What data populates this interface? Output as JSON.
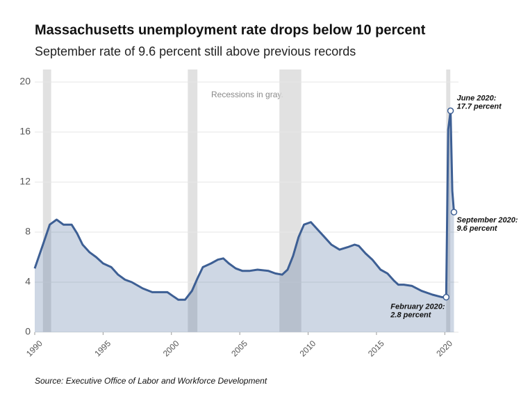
{
  "chart_data": {
    "type": "area",
    "title": "Massachusetts unemployment rate drops below 10 percent",
    "subtitle": "September rate of 9.6 percent still above previous records",
    "source": "Source: Executive Office of Labor and Workforce Development",
    "recession_note": "Recessions in gray.",
    "recessions": [
      [
        1990.6,
        1991.2
      ],
      [
        2001.2,
        2001.9
      ],
      [
        2007.9,
        2009.5
      ],
      [
        2020.1,
        2020.4
      ]
    ],
    "color": "#3d5f94",
    "grid": true,
    "xlim": [
      1990,
      2021
    ],
    "xticks": [
      1990,
      1995,
      2000,
      2005,
      2010,
      2015,
      2020
    ],
    "ylim": [
      0,
      21
    ],
    "yticks": [
      0,
      4,
      8,
      12,
      16,
      20
    ],
    "x": [
      1990.0,
      1990.6,
      1991.1,
      1991.6,
      1992.1,
      1992.7,
      1993.1,
      1993.5,
      1994.0,
      1994.5,
      1995.0,
      1995.6,
      1996.1,
      1996.6,
      1997.1,
      1997.9,
      1998.6,
      1999.7,
      2000.1,
      2000.5,
      2001.0,
      2001.5,
      2001.9,
      2002.3,
      2002.9,
      2003.4,
      2003.8,
      2004.2,
      2004.7,
      2005.2,
      2005.7,
      2006.3,
      2007.1,
      2007.6,
      2008.1,
      2008.5,
      2008.9,
      2009.3,
      2009.7,
      2010.2,
      2010.7,
      2011.2,
      2011.7,
      2012.3,
      2012.9,
      2013.4,
      2013.7,
      2014.2,
      2014.7,
      2015.3,
      2015.8,
      2016.3,
      2016.6,
      2017.0,
      2017.6,
      2018.3,
      2019.1,
      2019.8,
      2020.1,
      2020.25,
      2020.42,
      2020.55,
      2020.67
    ],
    "values": [
      5.1,
      7.0,
      8.6,
      9.0,
      8.6,
      8.6,
      7.9,
      7.0,
      6.4,
      6.0,
      5.5,
      5.2,
      4.6,
      4.2,
      4.0,
      3.5,
      3.2,
      3.2,
      2.9,
      2.6,
      2.6,
      3.3,
      4.3,
      5.2,
      5.5,
      5.8,
      5.9,
      5.5,
      5.1,
      4.9,
      4.9,
      5.0,
      4.9,
      4.7,
      4.6,
      5.0,
      6.1,
      7.6,
      8.6,
      8.8,
      8.2,
      7.6,
      7.0,
      6.6,
      6.8,
      7.0,
      6.9,
      6.3,
      5.8,
      5.0,
      4.7,
      4.1,
      3.8,
      3.8,
      3.7,
      3.3,
      3.0,
      2.8,
      2.8,
      16.2,
      17.7,
      11.3,
      9.6
    ],
    "annotations": [
      {
        "lines": [
          "February 2020:",
          "2.8 percent"
        ]
      },
      {
        "lines": [
          "June 2020:",
          "17.7 percent"
        ]
      },
      {
        "lines": [
          "September 2020:",
          "9.6 percent"
        ]
      }
    ]
  }
}
